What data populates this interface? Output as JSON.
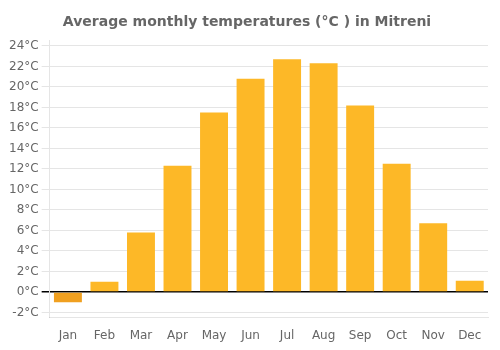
{
  "chart_data": {
    "type": "bar",
    "title": "Average monthly temperatures (°C ) in Mitreni",
    "categories": [
      "Jan",
      "Feb",
      "Mar",
      "Apr",
      "May",
      "Jun",
      "Jul",
      "Aug",
      "Sep",
      "Oct",
      "Nov",
      "Dec"
    ],
    "values": [
      -1.0,
      1.0,
      5.8,
      12.3,
      17.5,
      20.8,
      22.7,
      22.3,
      18.2,
      12.5,
      6.7,
      1.1
    ],
    "colors": [
      "#F0A020",
      "#FDB827",
      "#FDB827",
      "#FDB827",
      "#FDB827",
      "#FDB827",
      "#FDB827",
      "#FDB827",
      "#FDB827",
      "#FDB827",
      "#FDB827",
      "#FDB827"
    ],
    "ylim": [
      -2.5,
      24.5
    ],
    "yticks": [
      {
        "value": -2,
        "label": "-2°C"
      },
      {
        "value": 0,
        "label": "0°C"
      },
      {
        "value": 2,
        "label": "2°C"
      },
      {
        "value": 4,
        "label": "4°C"
      },
      {
        "value": 6,
        "label": "6°C"
      },
      {
        "value": 8,
        "label": "8°C"
      },
      {
        "value": 10,
        "label": "10°C"
      },
      {
        "value": 12,
        "label": "12°C"
      },
      {
        "value": 14,
        "label": "14°C"
      },
      {
        "value": 16,
        "label": "16°C"
      },
      {
        "value": 18,
        "label": "18°C"
      },
      {
        "value": 20,
        "label": "20°C"
      },
      {
        "value": 22,
        "label": "22°C"
      },
      {
        "value": 24,
        "label": "24°C"
      }
    ],
    "grid": true
  }
}
